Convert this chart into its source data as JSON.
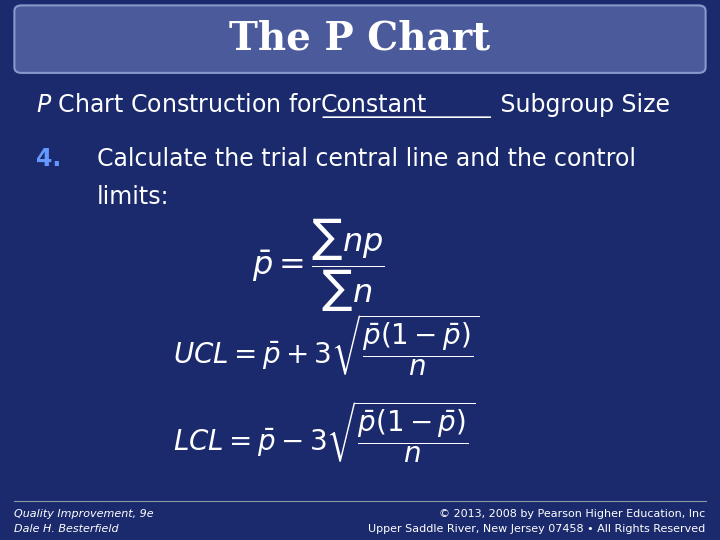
{
  "title": "The P Chart",
  "title_fontsize": 28,
  "title_bg_color": "#4B5A9B",
  "title_text_color": "#FFFFFF",
  "bg_color": "#1A2A6C",
  "subtitle_part1": "P Chart Construction for ",
  "subtitle_underline": "Constant",
  "subtitle_part2": " Subgroup Size",
  "item_number": "4.",
  "item_number_color": "#6699FF",
  "item_line1": "Calculate the trial central line and the control",
  "item_line2": "limits:",
  "text_color": "#FFFFFF",
  "formula1": "$\\bar{p} = \\dfrac{\\sum np}{\\sum n}$",
  "formula2": "$UCL = \\bar{p} + 3\\sqrt{\\dfrac{\\bar{p}(1-\\bar{p})}{n}}$",
  "formula3": "$LCL = \\bar{p} - 3\\sqrt{\\dfrac{\\bar{p}(1-\\bar{p})}{n}}$",
  "footer_left1": "Quality Improvement, 9e",
  "footer_left2": "Dale H. Besterfield",
  "footer_right1": "© 2013, 2008 by Pearson Higher Education, Inc",
  "footer_right2": "Upper Saddle River, New Jersey 07458 • All Rights Reserved",
  "footer_fontsize": 8,
  "formula_color": "#FFFFFF",
  "formula_fontsize": 20,
  "border_color": "#8899CC"
}
